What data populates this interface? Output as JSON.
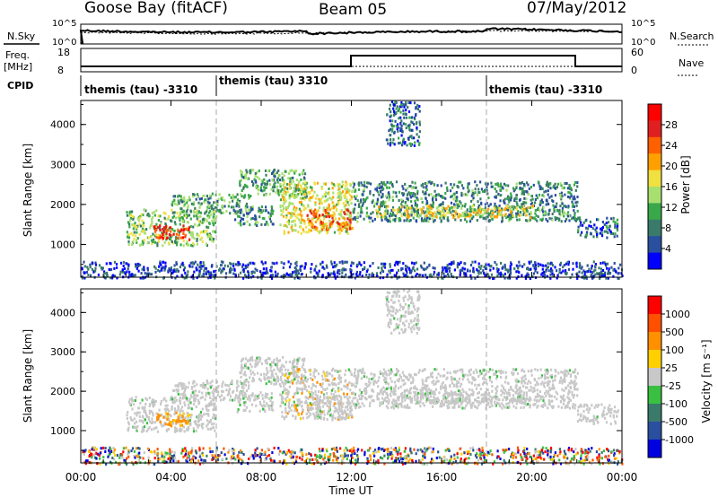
{
  "header": {
    "station": "Goose Bay (fitACF)",
    "beam": "Beam 05",
    "date": "07/May/2012"
  },
  "labels": {
    "nsky": "N.Sky",
    "nsearch": "N.Search",
    "freq_line1": "Freq.",
    "freq_line2": "[MHz]",
    "nave": "Nave",
    "cpid": "CPID",
    "xlabel": "Time UT",
    "ylabel": "Slant Range [km]",
    "power_label": "Power [dB]",
    "velocity_label": "Velocity  [m s⁻¹]"
  },
  "noise_axis": {
    "left_ticks": [
      "10^5",
      "10^0"
    ],
    "right_ticks": [
      "10^5",
      "10^0"
    ]
  },
  "freq_axis": {
    "left_ticks": [
      "18",
      "8"
    ],
    "right_ticks": [
      "60",
      "0"
    ]
  },
  "cpid_segments": [
    {
      "label": "themis (tau) -3310",
      "start": 0,
      "end": 6
    },
    {
      "label": "themis (tau) 3310",
      "start": 6,
      "end": 18
    },
    {
      "label": "themis (tau) -3310",
      "start": 18,
      "end": 24
    }
  ],
  "power_colorbar": {
    "ticks": [
      "28",
      "24",
      "20",
      "16",
      "12",
      "8",
      "4"
    ],
    "colors": [
      "#0000ff",
      "#2a4f9e",
      "#3a7a6a",
      "#39a84a",
      "#a8e070",
      "#f0e040",
      "#ffa000",
      "#ff6000",
      "#e02020",
      "#ff0000"
    ]
  },
  "velocity_colorbar": {
    "ticks": [
      "1000",
      "500",
      "100",
      "25",
      "-25",
      "-100",
      "-500",
      "-1000"
    ],
    "colors": [
      "#0000e0",
      "#2a4f9e",
      "#3a7a6a",
      "#39c040",
      "#c8c8c8",
      "#ffd000",
      "#ff9000",
      "#ff5000",
      "#ff0000"
    ]
  },
  "colors": {
    "range_grey": "#c8c8c8",
    "power_low": "#1f3fa8",
    "power_mid": "#3d8a5a",
    "power_high": "#ff9a00",
    "power_peak": "#ff2a00"
  },
  "chart_data": {
    "type": "heatmap",
    "x": {
      "ticks": [
        "00:00",
        "04:00",
        "08:00",
        "12:00",
        "16:00",
        "20:00",
        "00:00"
      ],
      "range_hours": [
        0,
        24
      ]
    },
    "y": {
      "ticks": [
        "1000",
        "2000",
        "3000",
        "4000"
      ],
      "range_km": [
        180,
        4600
      ]
    },
    "panels": [
      "power",
      "velocity"
    ],
    "scatter_bands": [
      {
        "t": [
          2.0,
          6.0
        ],
        "r": [
          1000,
          1900
        ],
        "power": 12
      },
      {
        "t": [
          3.2,
          4.8
        ],
        "r": [
          1150,
          1500
        ],
        "power": 26
      },
      {
        "t": [
          4.0,
          7.5
        ],
        "r": [
          1800,
          2300
        ],
        "power": 10
      },
      {
        "t": [
          6.8,
          8.5
        ],
        "r": [
          1500,
          2000
        ],
        "power": 8
      },
      {
        "t": [
          7.0,
          10.0
        ],
        "r": [
          2200,
          2900
        ],
        "power": 10
      },
      {
        "t": [
          8.8,
          12.0
        ],
        "r": [
          1300,
          2600
        ],
        "power": 16
      },
      {
        "t": [
          10.0,
          12.0
        ],
        "r": [
          1400,
          1900
        ],
        "power": 22
      },
      {
        "t": [
          12.0,
          22.0
        ],
        "r": [
          1600,
          2600
        ],
        "power": 8
      },
      {
        "t": [
          13.0,
          20.0
        ],
        "r": [
          1700,
          2000
        ],
        "power": 16
      },
      {
        "t": [
          22.0,
          23.8
        ],
        "r": [
          1200,
          1700
        ],
        "power": 6
      },
      {
        "t": [
          13.5,
          15.0
        ],
        "r": [
          3500,
          4600
        ],
        "power": 6
      },
      {
        "t": [
          0.0,
          24.0
        ],
        "r": [
          180,
          600
        ],
        "power": 4
      }
    ]
  }
}
